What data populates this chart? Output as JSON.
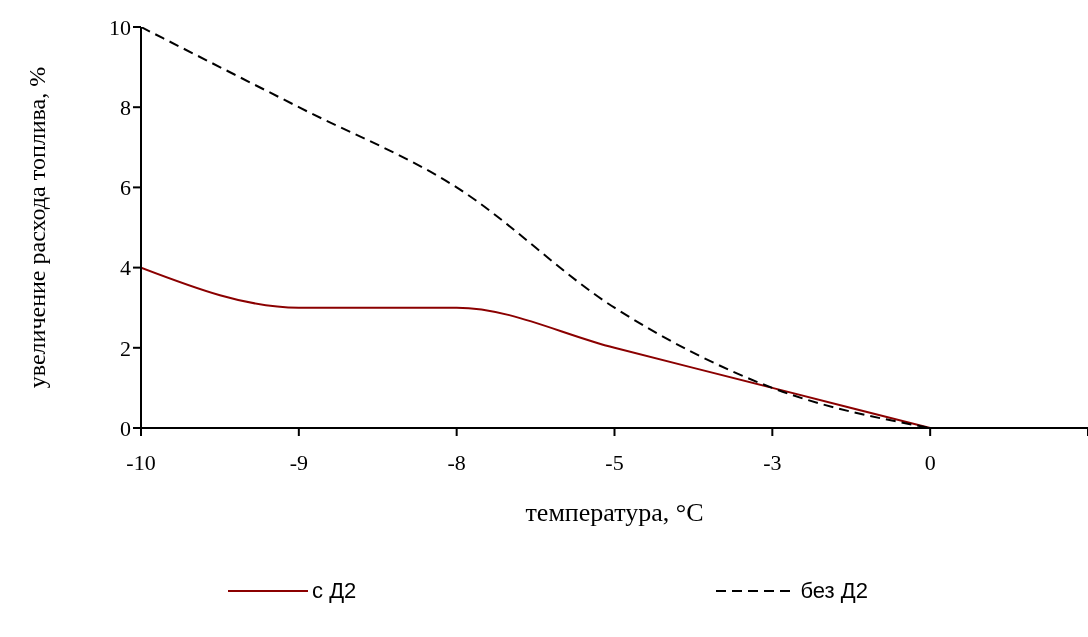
{
  "chart_data": {
    "type": "line",
    "xlabel": "температура, °C",
    "ylabel": "увеличение расхода топлива, %",
    "categories": [
      "-10",
      "-9",
      "-8",
      "-5",
      "-3",
      "0",
      null
    ],
    "series": [
      {
        "name": "с Д2",
        "color": "#8b0000",
        "line_style": "solid",
        "values": [
          4,
          3,
          3,
          2,
          1,
          0,
          null
        ]
      },
      {
        "name": "без Д2",
        "color": "#000000",
        "line_style": "dashed",
        "values": [
          10,
          8,
          6,
          3,
          1,
          0,
          null
        ]
      }
    ],
    "ylim": [
      0,
      10
    ],
    "yticks": [
      0,
      2,
      4,
      6,
      8,
      10
    ],
    "grid": false,
    "legend": "bottom",
    "marker": "none"
  }
}
